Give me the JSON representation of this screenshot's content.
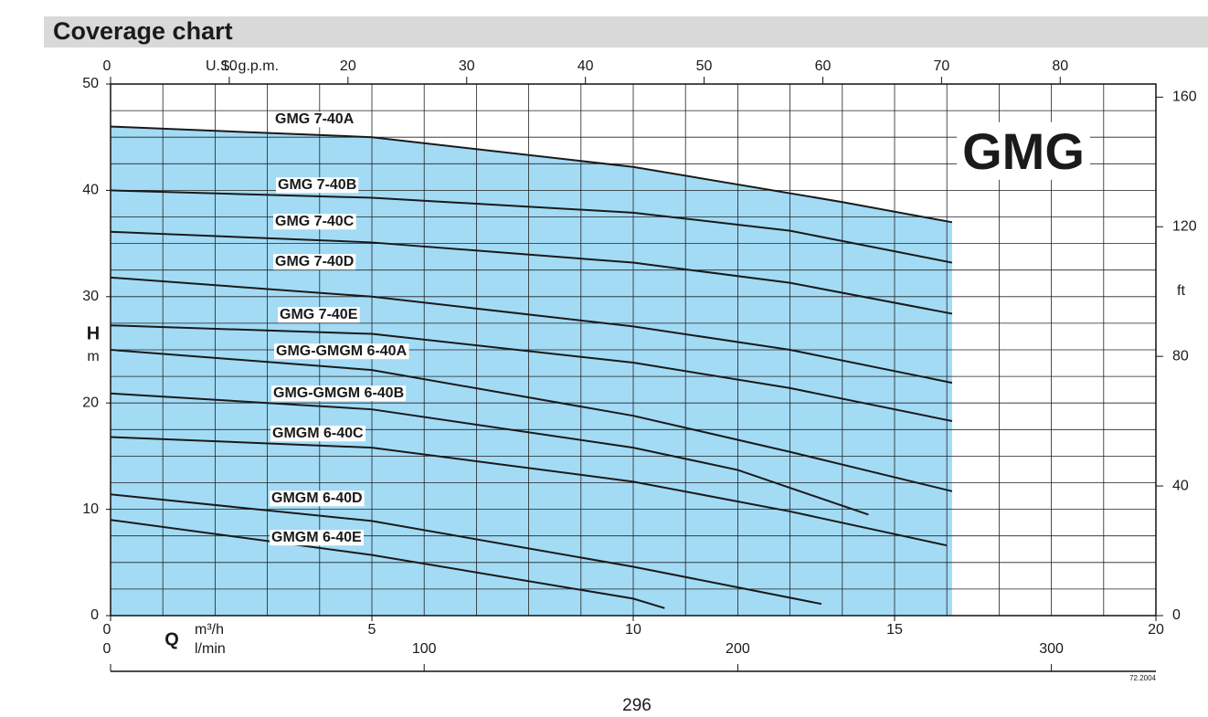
{
  "chart_data": {
    "type": "line",
    "title": "Coverage chart",
    "badge": "GMG",
    "page_number": "296",
    "edition": "72.2004",
    "xlabel_symbol": "Q",
    "xlabel": "m³/h",
    "x2label": "l/min",
    "x3label": "U.S. g.p.m.",
    "ylabel_symbol": "H",
    "ylabel": "m",
    "y2label": "ft",
    "fill_color": "#a3dbf5",
    "xlim": [
      0,
      20
    ],
    "xticks": [
      0,
      5,
      10,
      15,
      20
    ],
    "ylim": [
      0,
      50
    ],
    "yticks": [
      0,
      10,
      20,
      30,
      40,
      50
    ],
    "y2lim": [
      0,
      164.04
    ],
    "y2ticks": [
      0,
      40,
      80,
      120,
      160
    ],
    "x2lim": [
      0,
      333.33
    ],
    "x2ticks": [
      0,
      100,
      200,
      300
    ],
    "x3lim": [
      0,
      88.06
    ],
    "x3ticks": [
      0,
      10,
      20,
      30,
      40,
      50,
      60,
      70,
      80
    ],
    "minor_xticks": [
      0,
      1,
      2,
      3,
      4,
      5,
      6,
      7,
      8,
      9,
      10,
      11,
      12,
      13,
      14,
      15,
      16,
      17,
      18,
      19,
      20
    ],
    "minor_yticks": [
      0,
      2.5,
      5,
      7.5,
      10,
      12.5,
      15,
      17.5,
      20,
      22.5,
      25,
      27.5,
      30,
      32.5,
      35,
      37.5,
      40,
      42.5,
      45,
      47.5,
      50
    ],
    "series": [
      {
        "name": "GMG 7-40A",
        "color": "#1a1a1a",
        "x": [
          0,
          5,
          10,
          14,
          16.1
        ],
        "values": [
          46.0,
          45.0,
          42.2,
          38.9,
          37.0
        ]
      },
      {
        "name": "GMG 7-40B",
        "color": "#1a1a1a",
        "x": [
          0,
          5,
          10,
          13,
          16.1
        ],
        "values": [
          40.0,
          39.3,
          37.9,
          36.2,
          33.2
        ]
      },
      {
        "name": "GMG 7-40C",
        "color": "#1a1a1a",
        "x": [
          0,
          5,
          10,
          13,
          16.1
        ],
        "values": [
          36.1,
          35.1,
          33.2,
          31.3,
          28.4
        ]
      },
      {
        "name": "GMG 7-40D",
        "color": "#1a1a1a",
        "x": [
          0,
          5,
          10,
          13,
          16.1
        ],
        "values": [
          31.8,
          30.0,
          27.2,
          25.0,
          21.9
        ]
      },
      {
        "name": "GMG 7-40E",
        "color": "#1a1a1a",
        "x": [
          0,
          5,
          10,
          13,
          16.1
        ],
        "values": [
          27.3,
          26.5,
          23.8,
          21.4,
          18.3
        ]
      },
      {
        "name": "GMG-GMGM 6-40A",
        "color": "#1a1a1a",
        "x": [
          0,
          5,
          10,
          13,
          16.1
        ],
        "values": [
          25.0,
          23.1,
          18.8,
          15.4,
          11.7
        ]
      },
      {
        "name": "GMG-GMGM 6-40B",
        "color": "#1a1a1a",
        "x": [
          0,
          5,
          10,
          12,
          14.5
        ],
        "values": [
          20.9,
          19.4,
          15.8,
          13.7,
          9.5
        ]
      },
      {
        "name": "GMGM 6-40C",
        "color": "#1a1a1a",
        "x": [
          0,
          5,
          10,
          13,
          16.0
        ],
        "values": [
          16.8,
          15.8,
          12.6,
          9.8,
          6.6
        ]
      },
      {
        "name": "GMGM 6-40D",
        "color": "#1a1a1a",
        "x": [
          0,
          5,
          10,
          13.6
        ],
        "values": [
          11.4,
          8.9,
          4.6,
          1.1
        ]
      },
      {
        "name": "GMGM 6-40E",
        "color": "#1a1a1a",
        "x": [
          0,
          5,
          10,
          10.6
        ],
        "values": [
          9.0,
          5.7,
          1.6,
          0.7
        ]
      }
    ]
  }
}
